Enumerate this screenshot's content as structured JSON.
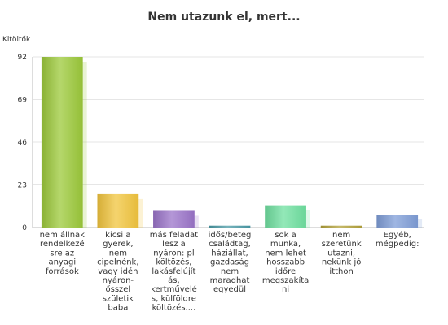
{
  "chart_data": {
    "type": "bar",
    "title": "Nem utazunk el, mert...",
    "xlabel": "",
    "ylabel": "Kitöltők",
    "ylim": [
      0,
      92
    ],
    "yticks": [
      0,
      23,
      46,
      69,
      92
    ],
    "grid": true,
    "categories": [
      [
        "nem állnak",
        "rendelkezé",
        "sre az",
        "anyagi",
        "források"
      ],
      [
        "kicsi a",
        "gyerek,",
        "nem",
        "cipelnénk,",
        "vagy idén",
        "nyáron-",
        "ősszel",
        "születik",
        "baba"
      ],
      [
        "más feladat",
        "lesz a",
        "nyáron: pl",
        "költözés,",
        "lakásfelújít",
        "ás,",
        "kertművelé",
        "s, külföldre",
        "költözés...."
      ],
      [
        "idős/beteg",
        "családtag,",
        "háziállat,",
        "gazdaság",
        "nem",
        "maradhat",
        "egyedül"
      ],
      [
        "sok a",
        "munka,",
        "nem lehet",
        "hosszabb",
        "időre",
        "megszakíta",
        "ni"
      ],
      [
        "nem",
        "szeretünk",
        "utazni,",
        "nekünk jó",
        "itthon"
      ],
      [
        "Egyéb,",
        "mégpedig:"
      ]
    ],
    "values": [
      92,
      18,
      9,
      1,
      12,
      1,
      7
    ],
    "colors": [
      "#9cc93a",
      "#f2c53d",
      "#9b74c9",
      "#4a9aa6",
      "#6fe0a0",
      "#b3a23a",
      "#7f9ed8"
    ]
  }
}
